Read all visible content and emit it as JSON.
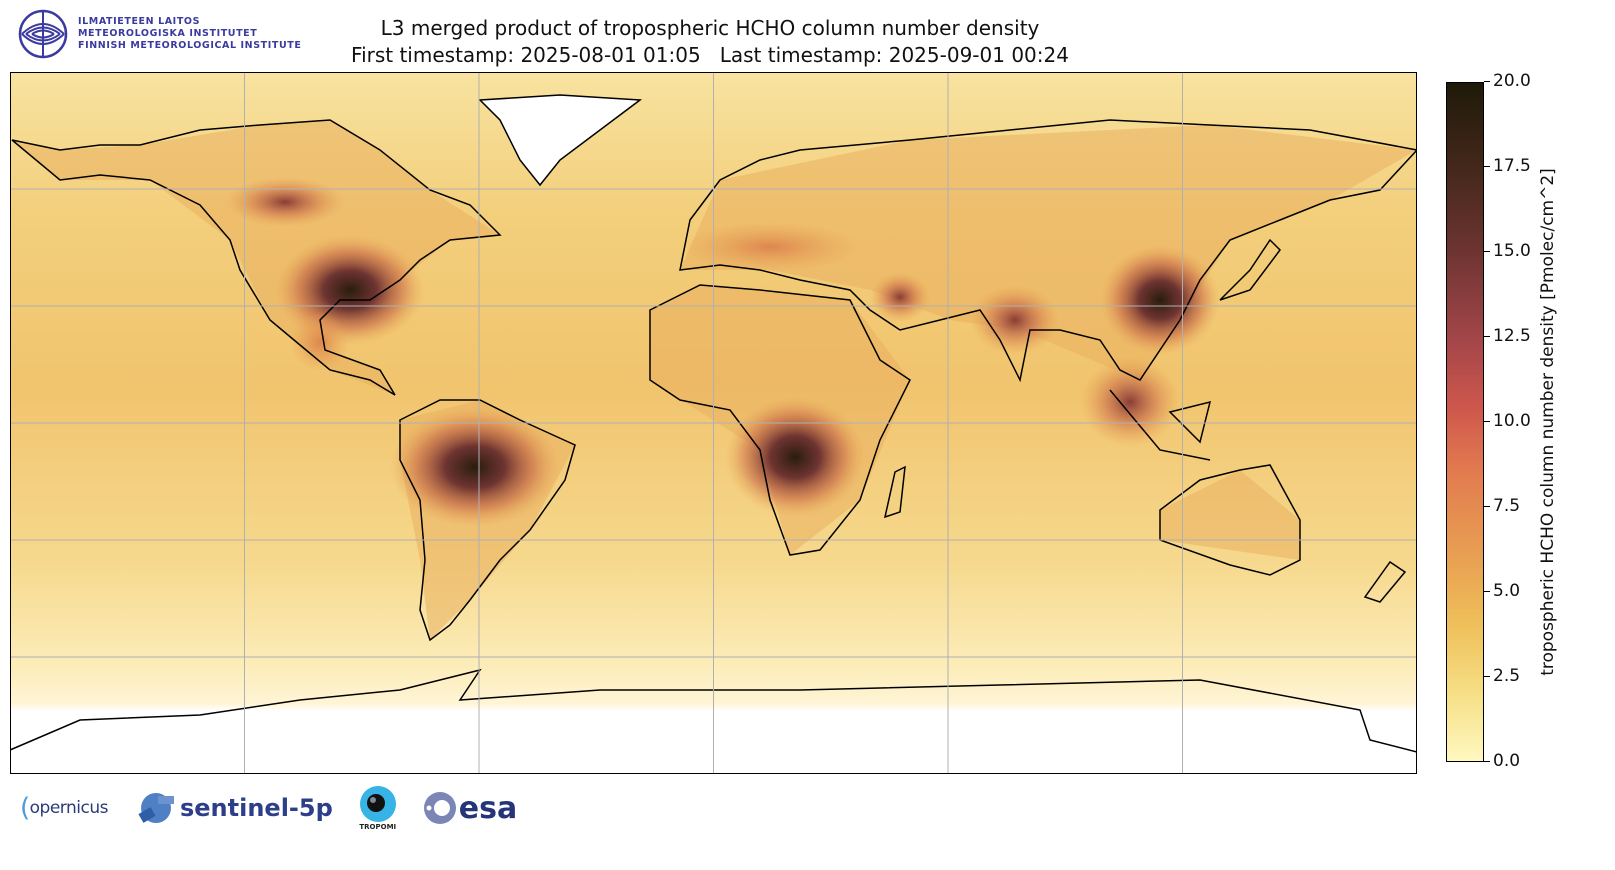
{
  "header": {
    "title_line1": "L3 merged product of tropospheric HCHO column number density",
    "title_line2": "First timestamp: 2025-08-01 01:05   Last timestamp: 2025-09-01 00:24"
  },
  "institute_logo": {
    "line1": "ILMATIETEEN LAITOS",
    "line2": "METEOROLOGISKA INSTITUTET",
    "line3": "FINNISH METEOROLOGICAL INSTITUTE",
    "color": "#3b3aa0"
  },
  "map": {
    "projection": "plate carree",
    "lon_range": [
      -180,
      180
    ],
    "lat_range": [
      -90,
      90
    ],
    "gridlines_lon": [
      -120,
      -60,
      0,
      60,
      120
    ],
    "gridlines_lat": [
      -60,
      -30,
      0,
      30,
      60
    ],
    "grid": true,
    "hotspots": [
      "Central Africa",
      "Amazon",
      "Southeast US",
      "Eastern China",
      "India",
      "Middle East",
      "Europe",
      "Southeast Asia"
    ]
  },
  "colorbar": {
    "label": "tropospheric HCHO column number density [Pmolec/cm^2]",
    "min": 0.0,
    "max": 20.0,
    "ticks": [
      "0.0",
      "2.5",
      "5.0",
      "7.5",
      "10.0",
      "12.5",
      "15.0",
      "17.5",
      "20.0"
    ],
    "colors": [
      "#fff8c0",
      "#efc05a",
      "#e27a50",
      "#ce574c",
      "#6e3431",
      "#1f1a08"
    ]
  },
  "footer_logos": {
    "copernicus": "opernicus",
    "sentinel": "sentinel-5p",
    "tropomi": "TROPOMI",
    "esa": "esa"
  }
}
